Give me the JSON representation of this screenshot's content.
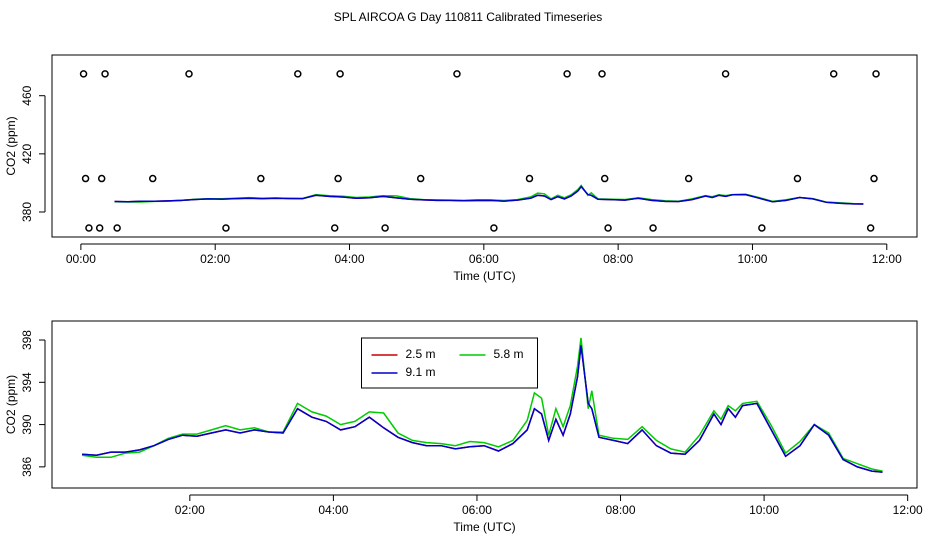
{
  "chart_data": [
    {
      "type": "line",
      "title": "SPL AIRCOA G  Day 110811  Calibrated Timeseries",
      "xlabel": "Time (UTC)",
      "ylabel": "CO2 (ppm)",
      "xlim": [
        -0.43,
        12.45
      ],
      "ylim": [
        362.8,
        488
      ],
      "xticks": [
        {
          "value": 0,
          "label": "00:00"
        },
        {
          "value": 2,
          "label": "02:00"
        },
        {
          "value": 4,
          "label": "04:00"
        },
        {
          "value": 6,
          "label": "06:00"
        },
        {
          "value": 8,
          "label": "08:00"
        },
        {
          "value": 10,
          "label": "10:00"
        },
        {
          "value": 12,
          "label": "12:00"
        }
      ],
      "yticks": [
        380,
        420,
        460
      ],
      "x": [
        0.5,
        0.7,
        0.9,
        1.1,
        1.3,
        1.5,
        1.7,
        1.9,
        2.1,
        2.3,
        2.5,
        2.7,
        2.9,
        3.1,
        3.3,
        3.5,
        3.7,
        3.9,
        4.1,
        4.3,
        4.5,
        4.7,
        4.9,
        5.1,
        5.3,
        5.5,
        5.7,
        5.9,
        6.1,
        6.3,
        6.5,
        6.7,
        6.8,
        6.9,
        7.0,
        7.1,
        7.2,
        7.3,
        7.4,
        7.45,
        7.55,
        7.6,
        7.7,
        7.9,
        8.1,
        8.3,
        8.5,
        8.7,
        8.9,
        9.1,
        9.3,
        9.4,
        9.5,
        9.6,
        9.7,
        9.9,
        10.1,
        10.3,
        10.5,
        10.7,
        10.9,
        11.1,
        11.3,
        11.5,
        11.65
      ],
      "series": [
        {
          "color": "#cc0000",
          "values": [
            387.2,
            387.1,
            387.4,
            387.4,
            387.6,
            388.0,
            388.6,
            389.0,
            388.9,
            389.2,
            389.5,
            389.2,
            389.5,
            389.3,
            389.2,
            391.5,
            390.7,
            390.3,
            389.5,
            389.8,
            390.7,
            389.7,
            388.8,
            388.3,
            388.0,
            388.0,
            387.7,
            387.9,
            388.0,
            387.5,
            388.2,
            389.5,
            391.5,
            391.0,
            388.5,
            390.5,
            389.0,
            391.0,
            394.5,
            397.5,
            392.0,
            391.5,
            388.8,
            388.5,
            388.2,
            389.5,
            388.0,
            387.3,
            387.2,
            388.5,
            391.0,
            390.0,
            391.5,
            390.7,
            391.8,
            392.0,
            389.5,
            387.0,
            388.0,
            390.0,
            389.0,
            386.7,
            386.0,
            385.6,
            385.5
          ]
        },
        {
          "color": "#00cc00",
          "values": [
            387.1,
            386.9,
            386.9,
            387.3,
            387.4,
            388.0,
            388.7,
            389.1,
            389.1,
            389.5,
            389.9,
            389.5,
            389.7,
            389.3,
            389.3,
            392.0,
            391.2,
            390.8,
            390.0,
            390.3,
            391.2,
            391.1,
            389.2,
            388.5,
            388.3,
            388.2,
            388.0,
            388.4,
            388.3,
            387.9,
            388.5,
            390.4,
            393.0,
            392.5,
            389.0,
            391.5,
            389.8,
            391.8,
            395.5,
            398.2,
            391.5,
            393.2,
            389.0,
            388.7,
            388.6,
            389.8,
            388.5,
            387.7,
            387.4,
            389.0,
            391.3,
            390.5,
            391.8,
            391.3,
            392.0,
            392.2,
            389.9,
            387.3,
            388.4,
            390.0,
            389.2,
            386.8,
            386.3,
            385.8,
            385.6
          ]
        },
        {
          "color": "#0000cc",
          "values": [
            387.2,
            387.1,
            387.4,
            387.4,
            387.6,
            388.0,
            388.6,
            389.0,
            388.9,
            389.2,
            389.5,
            389.2,
            389.5,
            389.3,
            389.2,
            391.5,
            390.7,
            390.3,
            389.5,
            389.8,
            390.7,
            389.7,
            388.8,
            388.3,
            388.0,
            388.0,
            387.7,
            387.9,
            388.0,
            387.5,
            388.2,
            389.5,
            391.5,
            391.0,
            388.5,
            390.5,
            389.0,
            391.0,
            394.5,
            397.5,
            392.0,
            391.5,
            388.8,
            388.5,
            388.2,
            389.5,
            388.0,
            387.3,
            387.2,
            388.5,
            391.0,
            390.0,
            391.5,
            390.7,
            391.8,
            392.0,
            389.5,
            387.0,
            388.0,
            390.0,
            389.0,
            386.7,
            386.0,
            385.6,
            385.5
          ]
        },
        {
          "marker": "circle",
          "color": "#000000",
          "x": [
            0.04,
            0.36,
            1.61,
            3.23,
            3.86,
            5.6,
            7.24,
            7.76,
            9.6,
            11.21,
            11.84,
            0.07,
            0.31,
            1.07,
            2.68,
            3.83,
            5.06,
            6.68,
            7.8,
            9.05,
            10.67,
            11.81,
            0.12,
            0.28,
            0.54,
            2.16,
            3.78,
            4.53,
            6.15,
            7.85,
            8.52,
            10.14,
            11.76
          ],
          "values": [
            475,
            475,
            475,
            475,
            475,
            475,
            475,
            475,
            475,
            475,
            475,
            403,
            403,
            403,
            403,
            403,
            403,
            403,
            403,
            403,
            403,
            403,
            369,
            369,
            369,
            369,
            369,
            369,
            369,
            369,
            369,
            369,
            369
          ]
        }
      ]
    },
    {
      "type": "line",
      "xlabel": "Time (UTC)",
      "ylabel": "CO2 (ppm)",
      "xlim": [
        0.08,
        12.13
      ],
      "ylim": [
        384.0,
        399.8
      ],
      "xticks": [
        {
          "value": 2,
          "label": "02:00"
        },
        {
          "value": 4,
          "label": "04:00"
        },
        {
          "value": 6,
          "label": "06:00"
        },
        {
          "value": 8,
          "label": "08:00"
        },
        {
          "value": 10,
          "label": "10:00"
        },
        {
          "value": 12,
          "label": "12:00"
        }
      ],
      "yticks": [
        386,
        390,
        394,
        398
      ],
      "legend": "top",
      "x": [
        0.5,
        0.7,
        0.9,
        1.1,
        1.3,
        1.5,
        1.7,
        1.9,
        2.1,
        2.3,
        2.5,
        2.7,
        2.9,
        3.1,
        3.3,
        3.5,
        3.7,
        3.9,
        4.1,
        4.3,
        4.5,
        4.7,
        4.9,
        5.1,
        5.3,
        5.5,
        5.7,
        5.9,
        6.1,
        6.3,
        6.5,
        6.7,
        6.8,
        6.9,
        7.0,
        7.1,
        7.2,
        7.3,
        7.4,
        7.45,
        7.55,
        7.6,
        7.7,
        7.9,
        8.1,
        8.3,
        8.5,
        8.7,
        8.9,
        9.1,
        9.3,
        9.4,
        9.5,
        9.6,
        9.7,
        9.9,
        10.1,
        10.3,
        10.5,
        10.7,
        10.9,
        11.1,
        11.3,
        11.5,
        11.65
      ],
      "series": [
        {
          "name": "2.5 m",
          "color": "#cc0000",
          "values": [
            387.2,
            387.1,
            387.4,
            387.4,
            387.6,
            388.0,
            388.6,
            389.0,
            388.9,
            389.2,
            389.5,
            389.2,
            389.5,
            389.3,
            389.2,
            391.5,
            390.7,
            390.3,
            389.5,
            389.8,
            390.7,
            389.7,
            388.8,
            388.3,
            388.0,
            388.0,
            387.7,
            387.9,
            388.0,
            387.5,
            388.2,
            389.5,
            391.5,
            391.0,
            388.5,
            390.5,
            389.0,
            391.0,
            394.5,
            397.5,
            392.0,
            391.5,
            388.8,
            388.5,
            388.2,
            389.5,
            388.0,
            387.3,
            387.2,
            388.5,
            391.0,
            390.0,
            391.5,
            390.7,
            391.8,
            392.0,
            389.5,
            387.0,
            388.0,
            390.0,
            389.0,
            386.7,
            386.0,
            385.6,
            385.5
          ]
        },
        {
          "name": "5.8 m",
          "color": "#00cc00",
          "values": [
            387.1,
            386.9,
            386.9,
            387.3,
            387.4,
            388.0,
            388.7,
            389.1,
            389.1,
            389.5,
            389.9,
            389.5,
            389.7,
            389.3,
            389.3,
            392.0,
            391.2,
            390.8,
            390.0,
            390.3,
            391.2,
            391.1,
            389.2,
            388.5,
            388.3,
            388.2,
            388.0,
            388.4,
            388.3,
            387.9,
            388.5,
            390.4,
            393.0,
            392.5,
            389.0,
            391.5,
            389.8,
            391.8,
            395.5,
            398.2,
            391.5,
            393.2,
            389.0,
            388.7,
            388.6,
            389.8,
            388.5,
            387.7,
            387.4,
            389.0,
            391.3,
            390.5,
            391.8,
            391.3,
            392.0,
            392.2,
            389.9,
            387.3,
            388.4,
            390.0,
            389.2,
            386.8,
            386.3,
            385.8,
            385.6
          ]
        },
        {
          "name": "9.1 m",
          "color": "#0000cc",
          "values": [
            387.2,
            387.1,
            387.4,
            387.4,
            387.6,
            388.0,
            388.6,
            389.0,
            388.9,
            389.2,
            389.5,
            389.2,
            389.5,
            389.3,
            389.2,
            391.5,
            390.7,
            390.3,
            389.5,
            389.8,
            390.7,
            389.7,
            388.8,
            388.3,
            388.0,
            388.0,
            387.7,
            387.9,
            388.0,
            387.5,
            388.2,
            389.5,
            391.5,
            391.0,
            388.5,
            390.5,
            389.0,
            391.0,
            394.5,
            397.5,
            392.0,
            391.5,
            388.8,
            388.5,
            388.2,
            389.5,
            388.0,
            387.3,
            387.2,
            388.5,
            391.0,
            390.0,
            391.5,
            390.7,
            391.8,
            392.0,
            389.5,
            387.0,
            388.0,
            390.0,
            389.0,
            386.7,
            386.0,
            385.6,
            385.5
          ]
        }
      ]
    }
  ]
}
